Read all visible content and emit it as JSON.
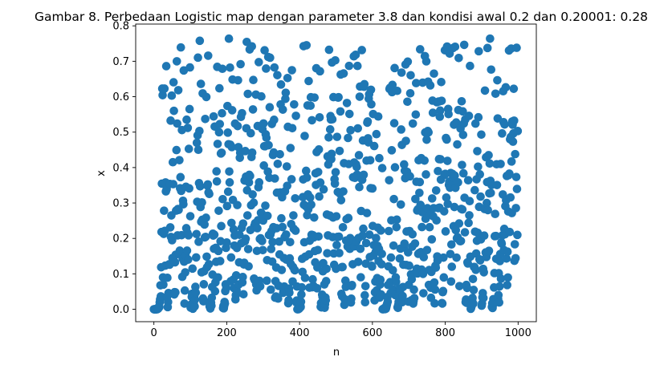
{
  "chart_data": {
    "type": "scatter",
    "title": "Gambar 8. Perbedaan Logistic map dengan parameter 3.8 dan kondisi awal 0.2 dan 0.20001: 0.28",
    "xlabel": "n",
    "ylabel": "x",
    "xlim": [
      -50,
      1050
    ],
    "ylim": [
      -0.035,
      0.805
    ],
    "xticks": [
      0,
      200,
      400,
      600,
      800,
      1000
    ],
    "yticks": [
      0.0,
      0.1,
      0.2,
      0.3,
      0.4,
      0.5,
      0.6,
      0.7,
      0.8
    ],
    "xtick_labels": [
      "0",
      "200",
      "400",
      "600",
      "800",
      "1000"
    ],
    "ytick_labels": [
      "0.0",
      "0.1",
      "0.2",
      "0.3",
      "0.4",
      "0.5",
      "0.6",
      "0.7",
      "0.8"
    ],
    "grid": false,
    "marker_color": "#1f77b4",
    "series": [
      {
        "generator": "abs(logistic(r, x0a, n) - logistic(r, x0b, n))",
        "r": 3.8,
        "x0a": 0.2,
        "x0b": 0.20001,
        "n_start": 0,
        "n_end": 999
      }
    ]
  }
}
